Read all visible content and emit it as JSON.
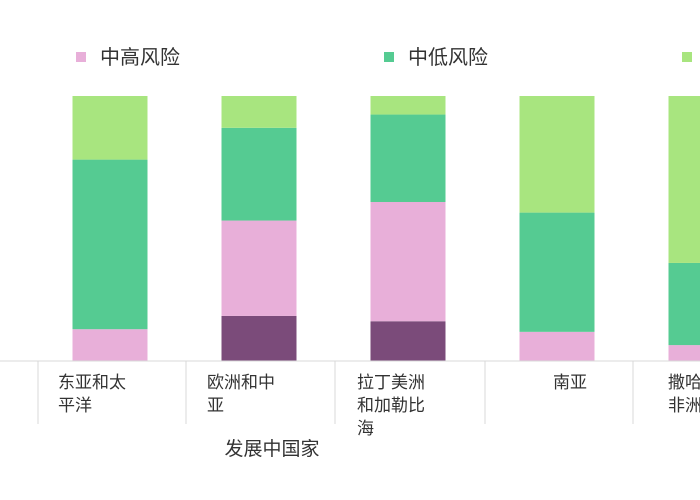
{
  "chart_data": {
    "type": "bar",
    "stacked": true,
    "orientation": "vertical",
    "ylim": [
      0,
      100
    ],
    "grid": false,
    "legend_position": "top",
    "group_label": "发展中国家",
    "categories": [
      [
        "东亚和太",
        "平洋"
      ],
      [
        "欧洲和中",
        "亚"
      ],
      [
        "拉丁美洲",
        "和加勒比",
        "海"
      ],
      [
        "南亚"
      ],
      [
        "撒哈",
        "非洲"
      ]
    ],
    "series": [
      {
        "name": "",
        "color": "#7b4b7a",
        "values": [
          0,
          17,
          15,
          0,
          0
        ]
      },
      {
        "name": "中高风险",
        "color": "#e8afd9",
        "values": [
          12,
          36,
          45,
          11,
          6
        ]
      },
      {
        "name": "中低风险",
        "color": "#55cb92",
        "values": [
          64,
          35,
          33,
          45,
          31
        ]
      },
      {
        "name": "",
        "color": "#a8e57f",
        "values": [
          24,
          12,
          7,
          44,
          63
        ]
      }
    ]
  }
}
